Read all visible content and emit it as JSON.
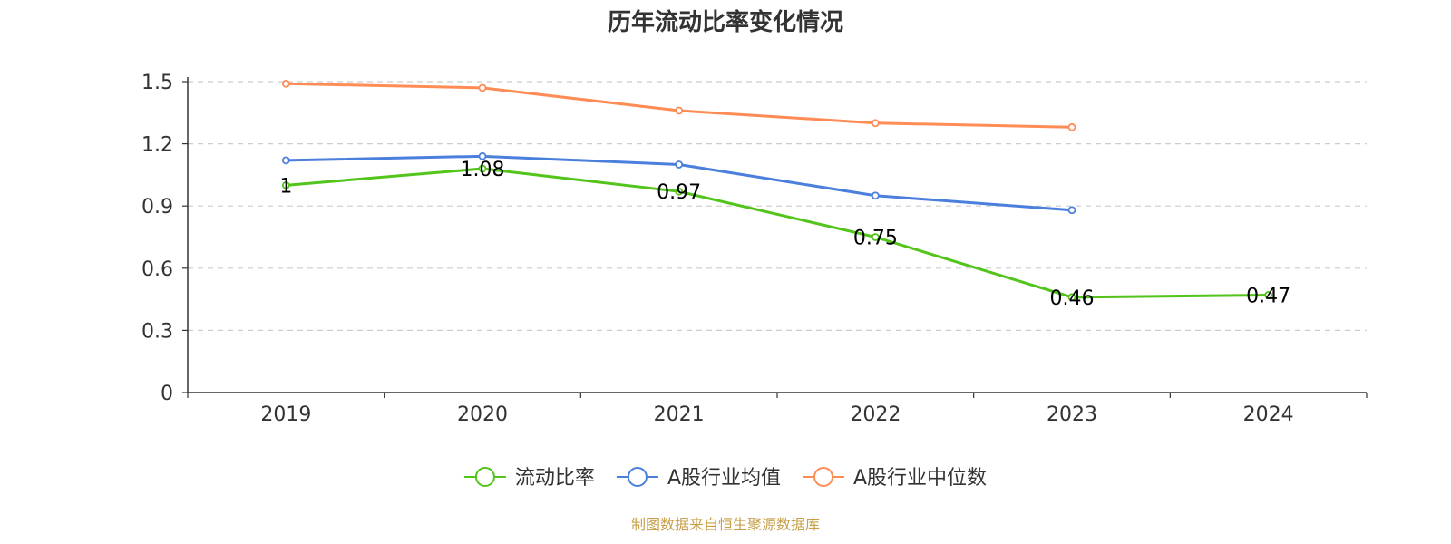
{
  "colors": {
    "current_ratio": "#52c41a",
    "industry_mean": "#4a7fdc",
    "industry_median": "#ff8c55",
    "grid": "#cccccc",
    "axis": "#333333",
    "source_text": "#c8a04a"
  },
  "footer": {
    "source": "制图数据来自恒生聚源数据库"
  },
  "chart_data": {
    "type": "line",
    "title": "历年流动比率变化情况",
    "categories": [
      "2019",
      "2020",
      "2021",
      "2022",
      "2023",
      "2024"
    ],
    "xlabel": "",
    "ylabel": "",
    "ylim": [
      0,
      1.5
    ],
    "yticks": [
      0,
      0.3,
      0.6,
      0.9,
      1.2,
      1.5
    ],
    "ytick_labels": [
      "0",
      "0.3",
      "0.6",
      "0.9",
      "1.2",
      "1.5"
    ],
    "grid": true,
    "legend_position": "bottom-center",
    "series": [
      {
        "name": "流动比率",
        "color": "#52c41a",
        "values": [
          1,
          1.08,
          0.97,
          0.75,
          0.46,
          0.47
        ],
        "labels": [
          "1",
          "1.08",
          "0.97",
          "0.75",
          "0.46",
          "0.47"
        ]
      },
      {
        "name": "A股行业均值",
        "color": "#4a7fdc",
        "values": [
          1.12,
          1.14,
          1.1,
          0.95,
          0.88,
          null
        ]
      },
      {
        "name": "A股行业中位数",
        "color": "#ff8c55",
        "values": [
          1.49,
          1.47,
          1.36,
          1.3,
          1.28,
          null
        ]
      }
    ]
  }
}
